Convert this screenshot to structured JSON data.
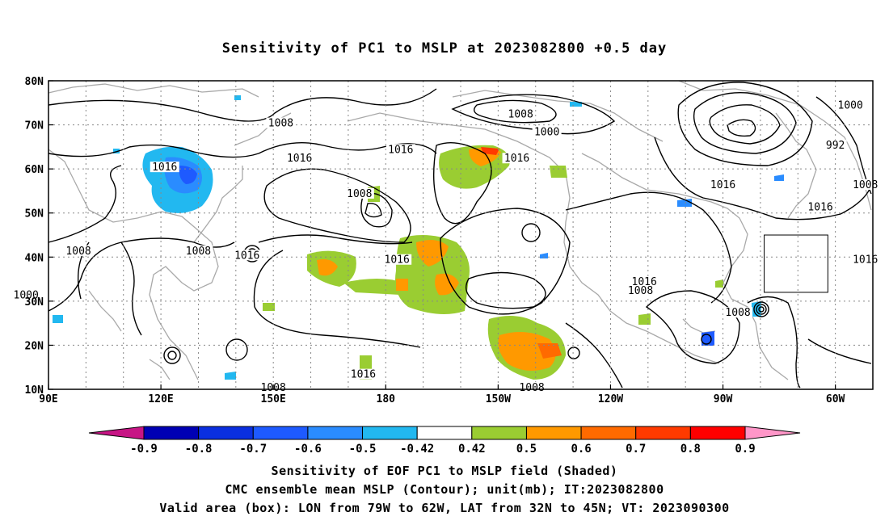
{
  "title": "Sensitivity of PC1 to MSLP at 2023082800 +0.5 day",
  "axes": {
    "lat_labels": [
      "80N",
      "70N",
      "60N",
      "50N",
      "40N",
      "30N",
      "20N",
      "10N"
    ],
    "lon_labels": [
      "90E",
      "120E",
      "150E",
      "180",
      "150W",
      "120W",
      "90W",
      "60W"
    ]
  },
  "contour_labels": [
    {
      "text": "1008",
      "lon": 152,
      "lat": 70
    },
    {
      "text": "1008",
      "lon": 216,
      "lat": 72
    },
    {
      "text": "1000",
      "lon": 223,
      "lat": 68
    },
    {
      "text": "1000",
      "lon": 304,
      "lat": 74
    },
    {
      "text": "992",
      "lon": 300,
      "lat": 65
    },
    {
      "text": "1016",
      "lon": 121,
      "lat": 60
    },
    {
      "text": "1016",
      "lon": 157,
      "lat": 62
    },
    {
      "text": "1016",
      "lon": 184,
      "lat": 64
    },
    {
      "text": "1016",
      "lon": 215,
      "lat": 62
    },
    {
      "text": "1016",
      "lon": 183,
      "lat": 39
    },
    {
      "text": "1016",
      "lon": 249,
      "lat": 34
    },
    {
      "text": "1016",
      "lon": 270,
      "lat": 56
    },
    {
      "text": "1016",
      "lon": 296,
      "lat": 51
    },
    {
      "text": "1016",
      "lon": 308,
      "lat": 39
    },
    {
      "text": "1016",
      "lon": 143,
      "lat": 40
    },
    {
      "text": "1016",
      "lon": 174,
      "lat": 13
    },
    {
      "text": "1008",
      "lon": 173,
      "lat": 54
    },
    {
      "text": "1008",
      "lon": 98,
      "lat": 41
    },
    {
      "text": "1008",
      "lon": 130,
      "lat": 41
    },
    {
      "text": "1008",
      "lon": 248,
      "lat": 32
    },
    {
      "text": "1008",
      "lon": 308,
      "lat": 56
    },
    {
      "text": "1008",
      "lon": 274,
      "lat": 27
    },
    {
      "text": "1008",
      "lon": 150,
      "lat": 10
    },
    {
      "text": "1008",
      "lon": 219,
      "lat": 10
    },
    {
      "text": "1000",
      "lon": 84,
      "lat": 31
    }
  ],
  "valid_box": {
    "lon_min": -79,
    "lon_max": -62,
    "lat_min": 32,
    "lat_max": 45
  },
  "colorbar": {
    "tick_labels": [
      "-0.9",
      "-0.8",
      "-0.7",
      "-0.6",
      "-0.5",
      "-0.42",
      "0.42",
      "0.5",
      "0.6",
      "0.7",
      "0.8",
      "0.9"
    ],
    "colors": [
      "#c71585",
      "#0000b4",
      "#0a2fe0",
      "#1e5aff",
      "#2a8cff",
      "#22b8f0",
      "#ffffff",
      "#9acd32",
      "#ff9900",
      "#ff6a00",
      "#ff3a00",
      "#ff0000",
      "#ff96c8"
    ]
  },
  "captions": [
    "Sensitivity of EOF PC1 to MSLP field (Shaded)",
    "CMC ensemble mean MSLP (Contour); unit(mb); IT:2023082800",
    "Valid area (box): LON from 79W to 62W, LAT from 32N to 45N; VT: 2023090300"
  ]
}
